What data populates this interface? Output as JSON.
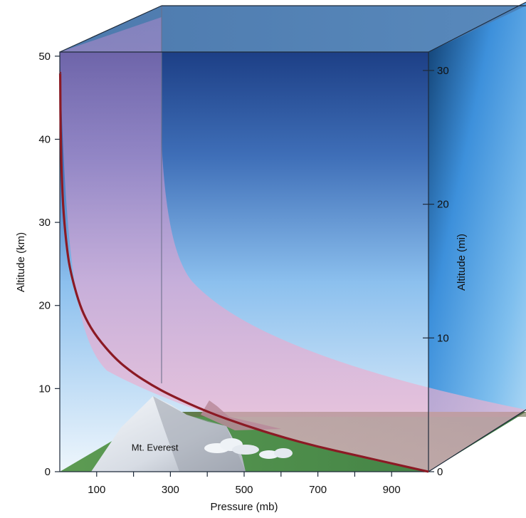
{
  "chart_data": {
    "type": "line",
    "title": "",
    "xlabel": "Pressure (mb)",
    "ylabel_left": "Altitude (km)",
    "ylabel_right": "Altitude (mi)",
    "x_ticks": [
      100,
      300,
      500,
      700,
      900
    ],
    "x_minor_ticks": [
      200,
      400,
      600,
      800
    ],
    "xlim": [
      0,
      1000
    ],
    "y_left_ticks": [
      0,
      10,
      20,
      30,
      40,
      50
    ],
    "ylim_left_km": [
      0,
      50
    ],
    "y_right_ticks": [
      0,
      10,
      20,
      30
    ],
    "ylim_right_mi": [
      0,
      31
    ],
    "series": [
      {
        "x": [
          1013,
          900,
          800,
          700,
          600,
          500,
          400,
          300,
          250,
          200,
          150,
          100,
          70,
          50,
          30,
          20,
          10,
          5,
          3,
          2,
          1
        ],
        "y": [
          0,
          1.0,
          2.0,
          3.0,
          4.2,
          5.6,
          7.2,
          9.2,
          10.4,
          11.8,
          13.6,
          16.2,
          18.4,
          20.6,
          23.9,
          26.5,
          31.0,
          35.8,
          39.5,
          42.5,
          48.0
        ],
        "color": "#8b1a24"
      }
    ],
    "annotations": [
      {
        "text": "Mt. Everest",
        "x": 320,
        "y": 2.7
      }
    ],
    "colors": {
      "sky_top": "#1f4f8f",
      "sky_bottom": "#e8f2fb",
      "pressure_band": "#d89cc8",
      "ground": "#4f8f4a",
      "curve": "#8b1a24"
    }
  }
}
